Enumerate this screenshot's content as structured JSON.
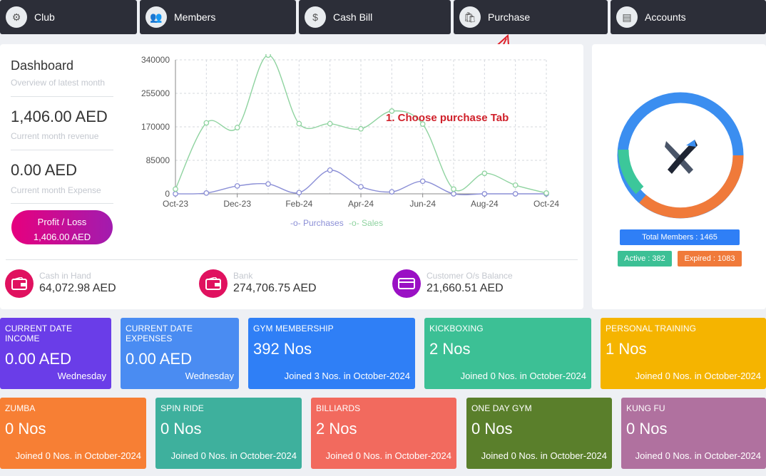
{
  "nav": {
    "tabs": [
      {
        "label": "Club",
        "icon": "club-icon"
      },
      {
        "label": "Members",
        "icon": "members-icon"
      },
      {
        "label": "Cash Bill",
        "icon": "cash-bill-icon"
      },
      {
        "label": "Purchase",
        "icon": "purchase-icon"
      },
      {
        "label": "Accounts",
        "icon": "accounts-icon"
      }
    ]
  },
  "dashboard": {
    "title": "Dashboard",
    "subtitle": "Overview of latest month",
    "revenue": "1,406.00 AED",
    "revenue_label": "Current month revenue",
    "expense": "0.00 AED",
    "expense_label": "Current month Expense",
    "profit_label": "Profit / Loss",
    "profit_value": "1,406.00 AED"
  },
  "balances": [
    {
      "label": "Cash in Hand",
      "value": "64,072.98 AED",
      "color": "#e0115f",
      "icon": "wallet-icon"
    },
    {
      "label": "Bank",
      "value": "274,706.75 AED",
      "color": "#e0115f",
      "icon": "wallet-icon"
    },
    {
      "label": "Customer O/s Balance",
      "value": "21,660.51 AED",
      "color": "#9a10c4",
      "icon": "card-icon"
    }
  ],
  "chart_data": {
    "type": "line",
    "x": [
      "Oct-23",
      "Nov-23",
      "Dec-23",
      "Jan-24",
      "Feb-24",
      "Mar-24",
      "Apr-24",
      "May-24",
      "Jun-24",
      "Jul-24",
      "Aug-24",
      "Sep-24",
      "Oct-24"
    ],
    "tick_labels": [
      "Oct-23",
      "Dec-23",
      "Feb-24",
      "Apr-24",
      "Jun-24",
      "Aug-24",
      "Oct-24"
    ],
    "y_ticks": [
      0,
      85000,
      170000,
      255000,
      340000
    ],
    "ylim": [
      0,
      340000
    ],
    "series": [
      {
        "name": "Purchases",
        "color": "#8b8fd6",
        "values": [
          0,
          2000,
          20000,
          25000,
          3000,
          60000,
          18000,
          5000,
          32000,
          0,
          0,
          0,
          0
        ]
      },
      {
        "name": "Sales",
        "color": "#8fd3a0",
        "values": [
          12000,
          180000,
          168000,
          352000,
          178000,
          178000,
          165000,
          210000,
          177000,
          12000,
          52000,
          22000,
          2000
        ]
      }
    ],
    "grid": true,
    "legend": "bottom"
  },
  "annotation": {
    "text": "1.  Choose purchase Tab"
  },
  "members": {
    "total": "Total Members : 1465",
    "active": "Active : 382",
    "expired": "Expired : 1083",
    "active_count": 382,
    "expired_count": 1083,
    "colors": {
      "blue": "#3b8ef0",
      "orange": "#f07a3a",
      "green": "#3cc79a"
    }
  },
  "cards_row1": [
    {
      "title": "CURRENT DATE INCOME",
      "value": "0.00 AED",
      "sub": "Wednesday",
      "color": "#6a3de8"
    },
    {
      "title": "CURRENT DATE EXPENSES",
      "value": "0.00 AED",
      "sub": "Wednesday",
      "color": "#4a8cf2"
    },
    {
      "title": "GYM MEMBERSHIP",
      "value": "392 Nos",
      "sub": "Joined 3 Nos. in October-2024",
      "color": "#2f7ff6"
    },
    {
      "title": "KICKBOXING",
      "value": "2 Nos",
      "sub": "Joined 0 Nos. in October-2024",
      "color": "#3cc095"
    },
    {
      "title": "PERSONAL TRAINING",
      "value": "1 Nos",
      "sub": "Joined 0 Nos. in October-2024",
      "color": "#f5b400"
    }
  ],
  "cards_row2": [
    {
      "title": "ZUMBA",
      "value": "0 Nos",
      "sub": "Joined 0 Nos. in October-2024",
      "color": "#f77f34"
    },
    {
      "title": "SPIN RIDE",
      "value": "0 Nos",
      "sub": "Joined 0 Nos. in October-2024",
      "color": "#3eb09d"
    },
    {
      "title": "BILLIARDS",
      "value": "2 Nos",
      "sub": "Joined 0 Nos. in October-2024",
      "color": "#f26a5e"
    },
    {
      "title": "ONE DAY GYM",
      "value": "0 Nos",
      "sub": "Joined 0 Nos. in October-2024",
      "color": "#5a7f2b"
    },
    {
      "title": "KUNG FU",
      "value": "0 Nos",
      "sub": "Joined 0 Nos. in October-2024",
      "color": "#b0719f"
    }
  ]
}
